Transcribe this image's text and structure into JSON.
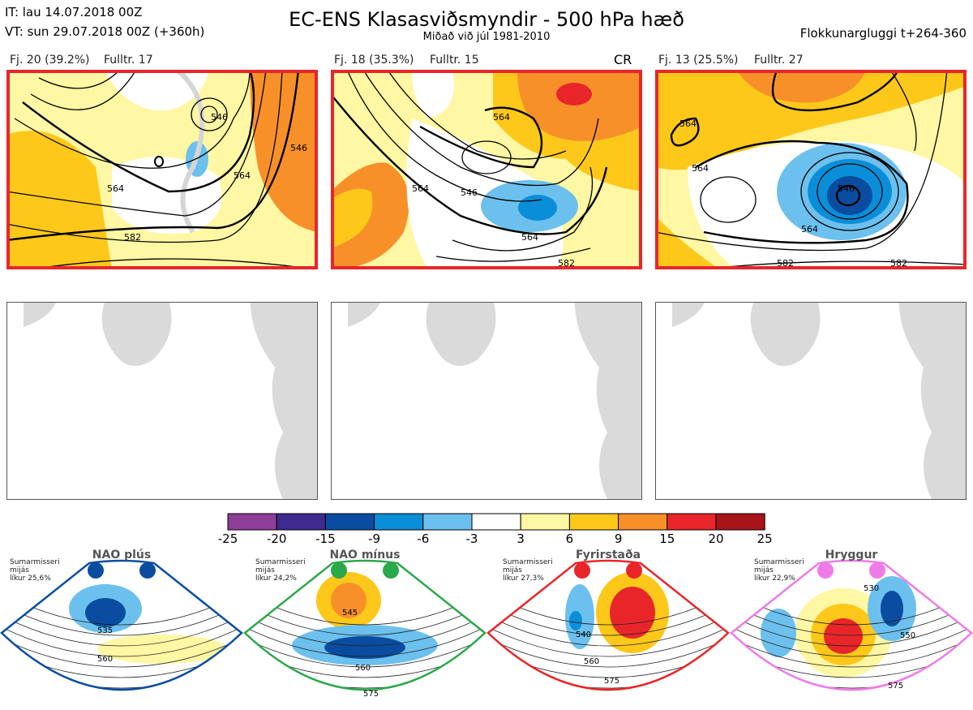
{
  "header": {
    "init_time": "IT: lau 14.07.2018 00Z",
    "valid_time": "VT: sun 29.07.2018 00Z  (+360h)",
    "title": "EC-ENS Klasasviðsmyndir - 500 hPa hæð",
    "subtitle": "Miðað við júl 1981-2010",
    "window": "Flokkunargluggi t+264-360"
  },
  "clusters": [
    {
      "label": "Fj. 20 (39.2%)",
      "rep": "Fulltr. 17",
      "extra": "",
      "contours": [
        "546",
        "564",
        "582",
        "564",
        "546"
      ]
    },
    {
      "label": "Fj. 18 (35.3%)",
      "rep": "Fulltr. 15",
      "extra": "CR",
      "contours": [
        "564",
        "546",
        "564",
        "582",
        "564"
      ]
    },
    {
      "label": "Fj. 13 (25.5%)",
      "rep": "Fulltr. 27",
      "extra": "",
      "contours": [
        "564",
        "546",
        "564",
        "582",
        "564",
        "582"
      ]
    }
  ],
  "colorbar": {
    "ticks": [
      "-25",
      "-20",
      "-15",
      "-9",
      "-6",
      "-3",
      "3",
      "6",
      "9",
      "15",
      "20",
      "25"
    ],
    "colors": [
      "#8e3e98",
      "#3f2a8f",
      "#0a4da0",
      "#0b8ed8",
      "#6cc0ee",
      "#ffffff",
      "#fff7a4",
      "#fdc81a",
      "#f79029",
      "#e8262a",
      "#a8141a"
    ]
  },
  "regimes": [
    {
      "title": "NAO plús",
      "info": [
        "Sumarmisseri",
        "mijás",
        "líkur 25,6%"
      ],
      "color": "#0a4da0",
      "labels": [
        "535",
        "560"
      ]
    },
    {
      "title": "NAO mínus",
      "info": [
        "Sumarmisseri",
        "mijás",
        "líkur 24,2%"
      ],
      "color": "#2aa84a",
      "labels": [
        "545",
        "560",
        "575"
      ]
    },
    {
      "title": "Fyrirstaða",
      "info": [
        "Sumarmisseri",
        "mijás",
        "líkur 27,3%"
      ],
      "color": "#e8262a",
      "labels": [
        "540",
        "560",
        "575"
      ]
    },
    {
      "title": "Hryggur",
      "info": [
        "Sumarmisseri",
        "mijás",
        "líkur 22,9%"
      ],
      "color": "#ee7be8",
      "labels": [
        "530",
        "550",
        "575"
      ]
    }
  ]
}
